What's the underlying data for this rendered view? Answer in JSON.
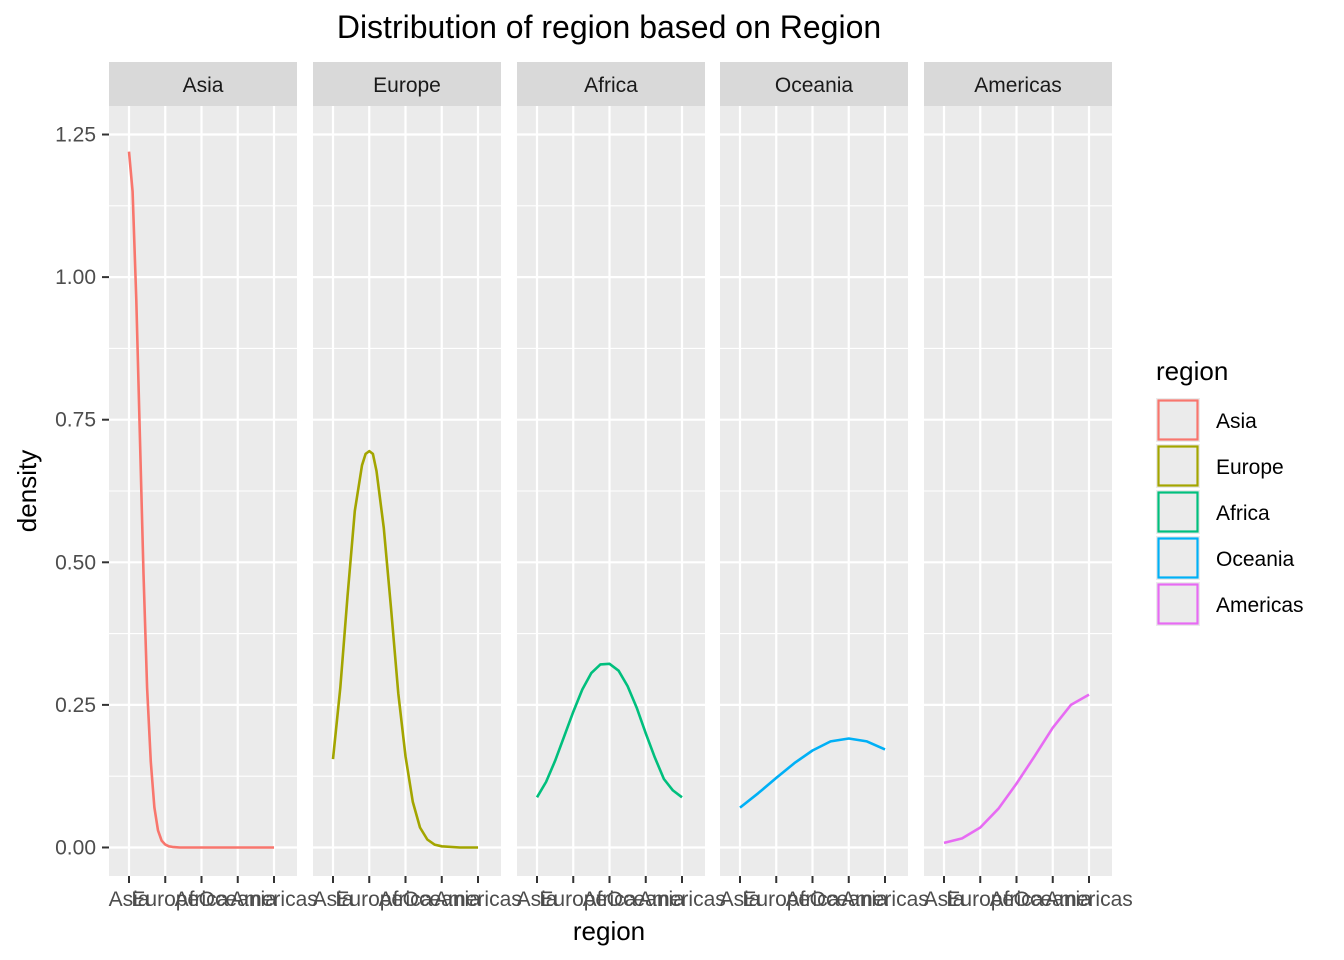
{
  "chart_data": {
    "type": "line",
    "title": "Distribution of region based on Region",
    "xlabel": "region",
    "ylabel": "density",
    "x_categories": [
      "Asia",
      "Europe",
      "Africa",
      "Oceania",
      "Americas"
    ],
    "ylim": [
      -0.05,
      1.3
    ],
    "y_ticks": [
      0.0,
      0.25,
      0.5,
      0.75,
      1.0,
      1.25
    ],
    "y_tick_labels": [
      "0.00",
      "0.25",
      "0.50",
      "0.75",
      "1.00",
      "1.25"
    ],
    "grid": true,
    "legend": {
      "title": "region",
      "position": "right",
      "entries": [
        {
          "label": "Asia",
          "color": "#F8766D"
        },
        {
          "label": "Europe",
          "color": "#A3A500"
        },
        {
          "label": "Africa",
          "color": "#00BF7D"
        },
        {
          "label": "Oceania",
          "color": "#00B0F6"
        },
        {
          "label": "Americas",
          "color": "#E76BF3"
        }
      ]
    },
    "panels": [
      {
        "strip": "Asia",
        "color": "#F8766D",
        "x": [
          1.0,
          1.1,
          1.2,
          1.3,
          1.4,
          1.5,
          1.6,
          1.7,
          1.8,
          1.9,
          2.0,
          2.1,
          2.2,
          2.4,
          2.6,
          3.0,
          3.5,
          4.0,
          4.5,
          5.0
        ],
        "y": [
          1.22,
          1.15,
          0.96,
          0.72,
          0.48,
          0.28,
          0.15,
          0.07,
          0.03,
          0.012,
          0.005,
          0.002,
          0.001,
          0.0,
          0.0,
          0.0,
          0.0,
          0.0,
          0.0,
          0.0
        ]
      },
      {
        "strip": "Europe",
        "color": "#A3A500",
        "x": [
          1.0,
          1.2,
          1.4,
          1.6,
          1.8,
          1.9,
          2.0,
          2.1,
          2.2,
          2.4,
          2.6,
          2.8,
          3.0,
          3.2,
          3.4,
          3.6,
          3.8,
          4.0,
          4.5,
          5.0
        ],
        "y": [
          0.155,
          0.28,
          0.44,
          0.59,
          0.67,
          0.69,
          0.695,
          0.69,
          0.66,
          0.56,
          0.42,
          0.27,
          0.16,
          0.08,
          0.035,
          0.014,
          0.005,
          0.002,
          0.0,
          0.0
        ]
      },
      {
        "strip": "Africa",
        "color": "#00BF7D",
        "x": [
          1.0,
          1.25,
          1.5,
          1.75,
          2.0,
          2.25,
          2.5,
          2.75,
          3.0,
          3.25,
          3.5,
          3.75,
          4.0,
          4.25,
          4.5,
          4.75,
          5.0
        ],
        "y": [
          0.088,
          0.115,
          0.152,
          0.195,
          0.238,
          0.277,
          0.306,
          0.321,
          0.322,
          0.31,
          0.283,
          0.245,
          0.2,
          0.158,
          0.12,
          0.1,
          0.088
        ]
      },
      {
        "strip": "Oceania",
        "color": "#00B0F6",
        "x": [
          1.0,
          1.5,
          2.0,
          2.5,
          3.0,
          3.5,
          4.0,
          4.5,
          5.0
        ],
        "y": [
          0.07,
          0.095,
          0.122,
          0.148,
          0.17,
          0.186,
          0.191,
          0.186,
          0.172
        ]
      },
      {
        "strip": "Americas",
        "color": "#E76BF3",
        "x": [
          1.0,
          1.5,
          2.0,
          2.5,
          3.0,
          3.5,
          4.0,
          4.5,
          5.0
        ],
        "y": [
          0.008,
          0.016,
          0.035,
          0.068,
          0.112,
          0.16,
          0.21,
          0.25,
          0.268
        ]
      }
    ]
  }
}
